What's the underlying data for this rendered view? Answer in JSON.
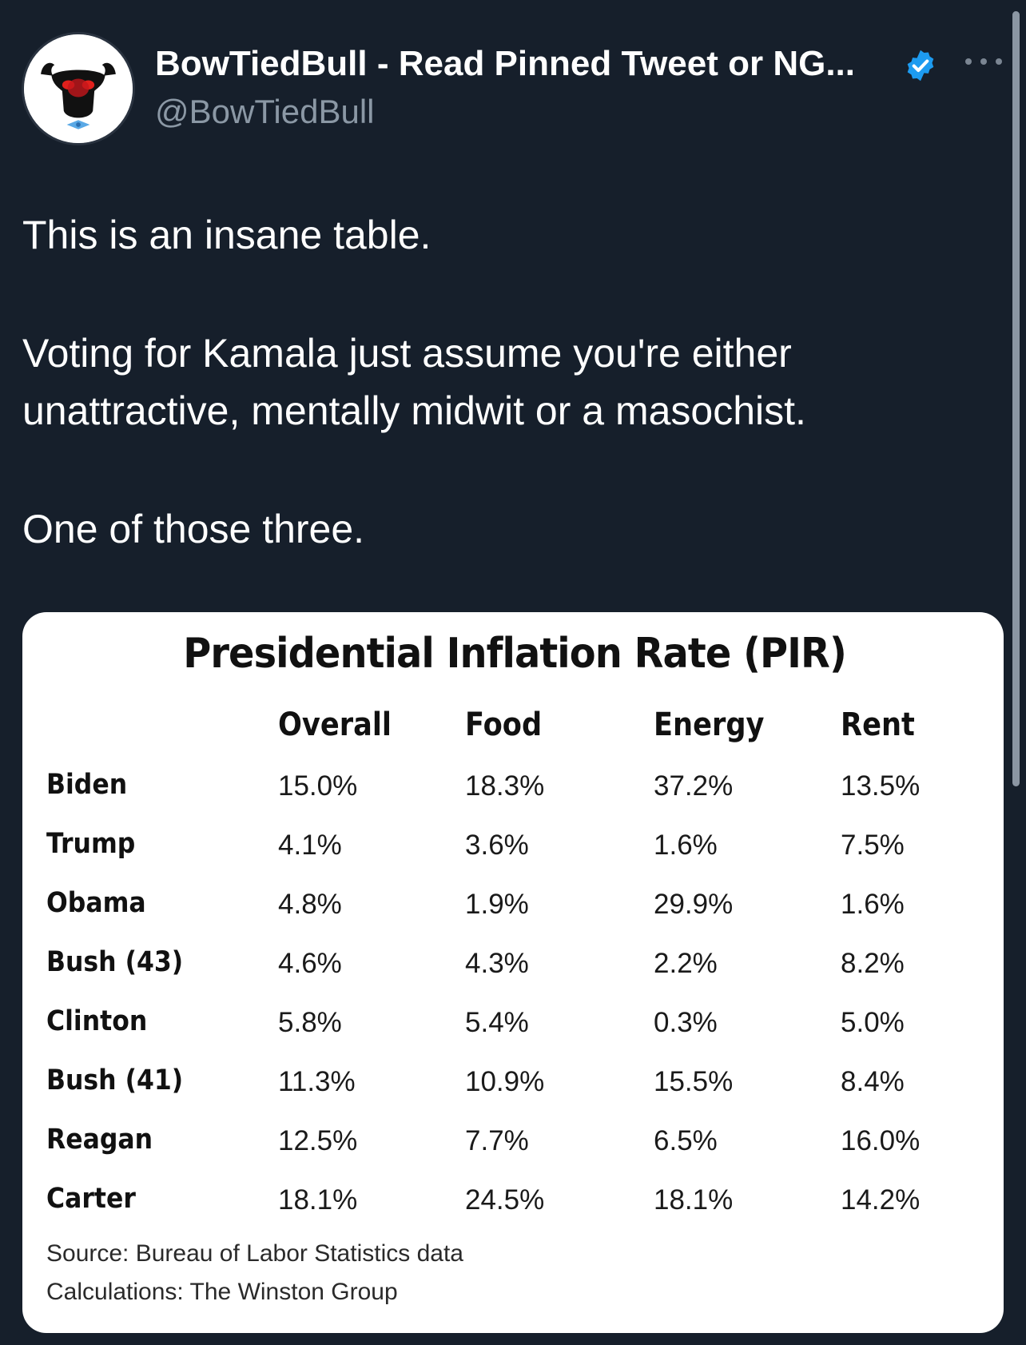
{
  "author": {
    "display_name": "BowTiedBull - Read Pinned Tweet or NG...",
    "handle": "@BowTiedBull",
    "verified_icon": "verified-badge-icon",
    "accent_color": "#1d9bf0"
  },
  "tweet": {
    "paragraphs": [
      "This is an insane table.",
      "Voting for Kamala just assume you're either",
      "unattractive, mentally midwit or a masochist.",
      "One of those three."
    ]
  },
  "media": {
    "title": "Presidential Inflation Rate (PIR)",
    "columns": [
      "Overall",
      "Food",
      "Energy",
      "Rent"
    ],
    "rows": [
      {
        "label": "Biden",
        "values": [
          "15.0%",
          "18.3%",
          "37.2%",
          "13.5%"
        ]
      },
      {
        "label": "Trump",
        "values": [
          "4.1%",
          "3.6%",
          "1.6%",
          "7.5%"
        ]
      },
      {
        "label": "Obama",
        "values": [
          "4.8%",
          "1.9%",
          "29.9%",
          "1.6%"
        ]
      },
      {
        "label": "Bush  (43)",
        "values": [
          "4.6%",
          "4.3%",
          "2.2%",
          "8.2%"
        ]
      },
      {
        "label": "Clinton",
        "values": [
          "5.8%",
          "5.4%",
          "0.3%",
          "5.0%"
        ]
      },
      {
        "label": "Bush (41)",
        "values": [
          "11.3%",
          "10.9%",
          "15.5%",
          "8.4%"
        ]
      },
      {
        "label": "Reagan",
        "values": [
          "12.5%",
          "7.7%",
          "6.5%",
          "16.0%"
        ]
      },
      {
        "label": "Carter",
        "values": [
          "18.1%",
          "24.5%",
          "18.1%",
          "14.2%"
        ]
      }
    ],
    "source": "Source: Bureau of Labor Statistics data",
    "calculations": "Calculations: The Winston Group"
  }
}
